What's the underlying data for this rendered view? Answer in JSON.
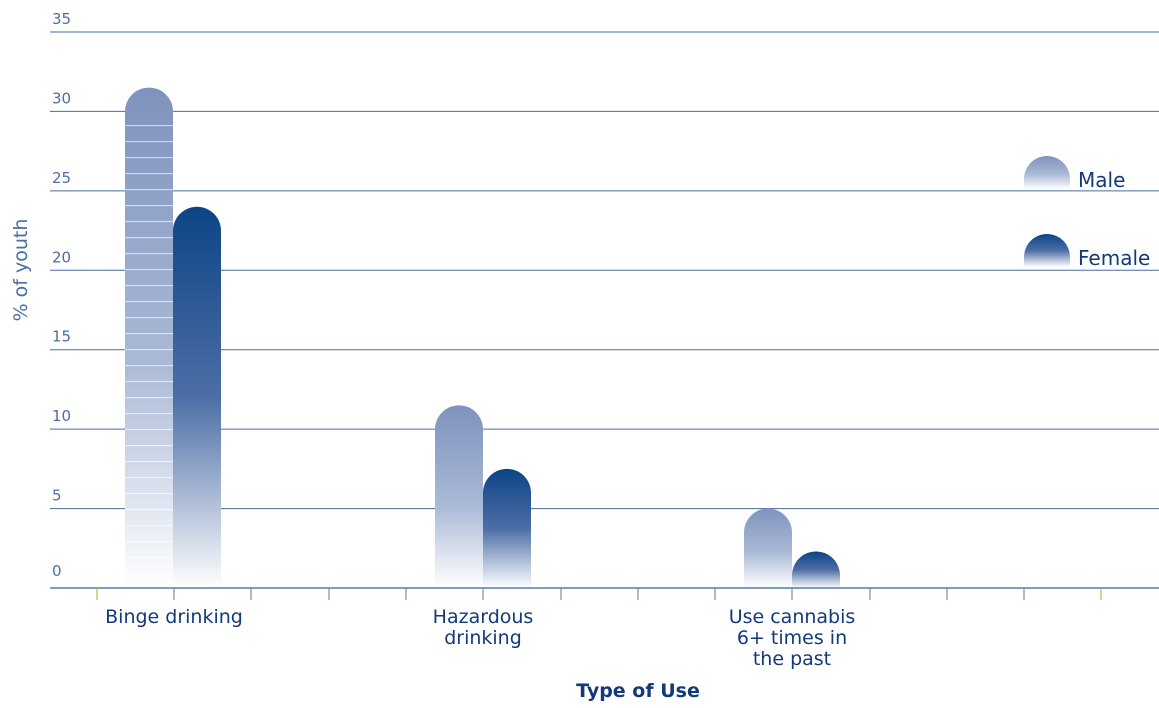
{
  "chart_data": {
    "type": "bar",
    "title": "",
    "xlabel": "Type of Use",
    "ylabel": "% of youth",
    "ylim": [
      0,
      35
    ],
    "yticks": [
      0,
      5,
      10,
      15,
      20,
      25,
      30,
      35
    ],
    "grid": true,
    "legend_position": "right",
    "categories": [
      [
        "Binge drinking"
      ],
      [
        "Hazardous",
        "drinking"
      ],
      [
        "Use cannabis",
        "6+ times in",
        "the past"
      ]
    ],
    "series": [
      {
        "name": "Male",
        "values": [
          31.5,
          11.5,
          5.0
        ],
        "color": "#7e92bd"
      },
      {
        "name": "Female",
        "values": [
          24.0,
          7.5,
          2.3
        ],
        "color": "#0d4486"
      }
    ]
  }
}
